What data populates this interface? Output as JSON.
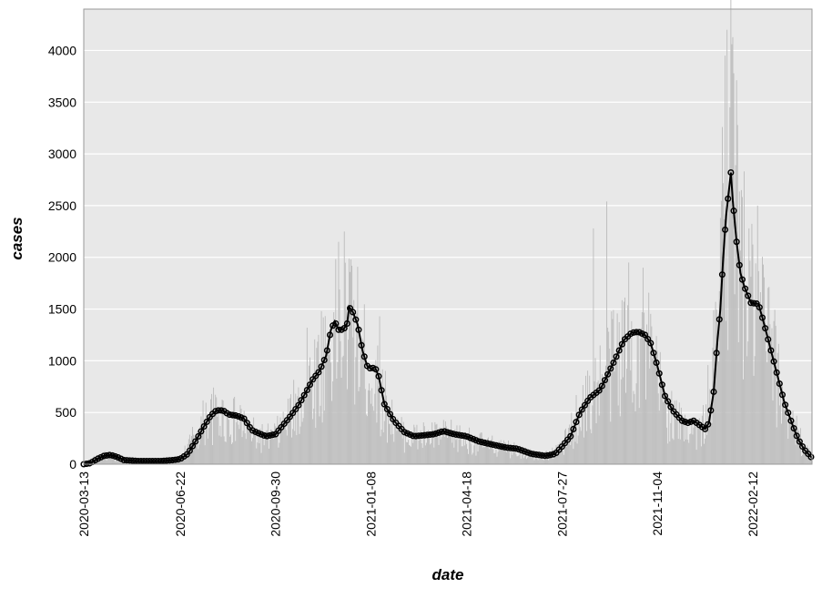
{
  "chart_data": {
    "type": "bar",
    "xlabel": "date",
    "ylabel": "cases",
    "x_axis": {
      "type": "date",
      "range": [
        "2020-03-13",
        "2022-04-15"
      ],
      "ticks": [
        "2020-03-13",
        "2020-06-22",
        "2020-09-30",
        "2021-01-08",
        "2021-04-18",
        "2021-07-27",
        "2021-11-04",
        "2022-02-12"
      ]
    },
    "y_axis": {
      "range": [
        0,
        4400
      ],
      "ticks": [
        0,
        500,
        1000,
        1500,
        2000,
        2500,
        3000,
        3500,
        4000
      ]
    },
    "grid": "horizontal",
    "legend": "none",
    "colors": {
      "background": "#e8e8e8",
      "bars": "#bbbbbb",
      "line": "#000000",
      "grid": "#ffffff"
    },
    "series": [
      {
        "kind": "bar",
        "description": "daily cases",
        "anchors": [
          [
            "2020-03-13",
            0
          ],
          [
            "2020-03-25",
            60
          ],
          [
            "2020-04-05",
            90
          ],
          [
            "2020-04-20",
            30
          ],
          [
            "2020-05-15",
            20
          ],
          [
            "2020-06-12",
            30
          ],
          [
            "2020-06-22",
            60
          ],
          [
            "2020-07-05",
            260
          ],
          [
            "2020-07-20",
            500
          ],
          [
            "2020-08-01",
            530
          ],
          [
            "2020-08-10",
            470
          ],
          [
            "2020-08-25",
            440
          ],
          [
            "2020-09-05",
            320
          ],
          [
            "2020-09-20",
            270
          ],
          [
            "2020-09-30",
            300
          ],
          [
            "2020-10-15",
            500
          ],
          [
            "2020-10-30",
            750
          ],
          [
            "2020-11-15",
            1050
          ],
          [
            "2020-11-28",
            1350
          ],
          [
            "2020-12-08",
            1400
          ],
          [
            "2020-12-20",
            1500
          ],
          [
            "2021-01-01",
            1100
          ],
          [
            "2021-01-08",
            950
          ],
          [
            "2021-01-20",
            700
          ],
          [
            "2021-02-05",
            350
          ],
          [
            "2021-02-20",
            280
          ],
          [
            "2021-03-10",
            300
          ],
          [
            "2021-04-01",
            300
          ],
          [
            "2021-04-18",
            260
          ],
          [
            "2021-05-10",
            200
          ],
          [
            "2021-06-01",
            160
          ],
          [
            "2021-06-20",
            120
          ],
          [
            "2021-07-10",
            90
          ],
          [
            "2021-07-27",
            170
          ],
          [
            "2021-08-10",
            450
          ],
          [
            "2021-08-25",
            700
          ],
          [
            "2021-09-10",
            950
          ],
          [
            "2021-09-25",
            1200
          ],
          [
            "2021-10-10",
            1280
          ],
          [
            "2021-10-25",
            1200
          ],
          [
            "2021-11-04",
            900
          ],
          [
            "2021-11-15",
            550
          ],
          [
            "2021-11-30",
            400
          ],
          [
            "2021-12-10",
            420
          ],
          [
            "2021-12-20",
            330
          ],
          [
            "2022-01-01",
            900
          ],
          [
            "2022-01-08",
            1800
          ],
          [
            "2022-01-15",
            2800
          ],
          [
            "2022-01-20",
            3300
          ],
          [
            "2022-01-25",
            2900
          ],
          [
            "2022-02-01",
            2100
          ],
          [
            "2022-02-12",
            1600
          ],
          [
            "2022-02-25",
            1500
          ],
          [
            "2022-03-10",
            900
          ],
          [
            "2022-03-25",
            450
          ],
          [
            "2022-04-05",
            200
          ],
          [
            "2022-04-15",
            80
          ]
        ],
        "spikes": [
          [
            "2021-08-29",
            2280
          ],
          [
            "2021-09-12",
            2540
          ],
          [
            "2021-10-05",
            1950
          ],
          [
            "2021-10-20",
            1900
          ],
          [
            "2020-11-02",
            1320
          ],
          [
            "2020-12-05",
            2150
          ],
          [
            "2020-12-11",
            2250
          ],
          [
            "2020-12-18",
            1980
          ],
          [
            "2021-01-17",
            1430
          ],
          [
            "2022-01-11",
            3260
          ],
          [
            "2022-01-14",
            3950
          ],
          [
            "2022-01-16",
            4200
          ],
          [
            "2022-01-19",
            3450
          ],
          [
            "2022-01-21",
            4060
          ],
          [
            "2022-01-23",
            3780
          ],
          [
            "2022-01-31",
            2650
          ],
          [
            "2022-02-08",
            2280
          ],
          [
            "2022-02-17",
            2500
          ]
        ]
      },
      {
        "kind": "line",
        "description": "rolling average with circle markers",
        "points": [
          [
            "2020-03-13",
            0
          ],
          [
            "2020-03-20",
            10
          ],
          [
            "2020-03-27",
            50
          ],
          [
            "2020-04-03",
            80
          ],
          [
            "2020-04-10",
            90
          ],
          [
            "2020-04-17",
            70
          ],
          [
            "2020-04-24",
            40
          ],
          [
            "2020-05-10",
            30
          ],
          [
            "2020-06-01",
            30
          ],
          [
            "2020-06-15",
            40
          ],
          [
            "2020-06-22",
            50
          ],
          [
            "2020-06-30",
            100
          ],
          [
            "2020-07-08",
            220
          ],
          [
            "2020-07-16",
            350
          ],
          [
            "2020-07-24",
            470
          ],
          [
            "2020-07-30",
            520
          ],
          [
            "2020-08-06",
            520
          ],
          [
            "2020-08-12",
            480
          ],
          [
            "2020-08-20",
            470
          ],
          [
            "2020-08-28",
            440
          ],
          [
            "2020-09-05",
            330
          ],
          [
            "2020-09-12",
            300
          ],
          [
            "2020-09-20",
            270
          ],
          [
            "2020-09-30",
            290
          ],
          [
            "2020-10-08",
            380
          ],
          [
            "2020-10-16",
            470
          ],
          [
            "2020-10-24",
            570
          ],
          [
            "2020-11-01",
            700
          ],
          [
            "2020-11-08",
            820
          ],
          [
            "2020-11-15",
            900
          ],
          [
            "2020-11-22",
            1050
          ],
          [
            "2020-11-27",
            1300
          ],
          [
            "2020-12-01",
            1380
          ],
          [
            "2020-12-05",
            1300
          ],
          [
            "2020-12-10",
            1300
          ],
          [
            "2020-12-14",
            1360
          ],
          [
            "2020-12-16",
            1520
          ],
          [
            "2020-12-20",
            1470
          ],
          [
            "2020-12-25",
            1350
          ],
          [
            "2020-12-30",
            1100
          ],
          [
            "2021-01-04",
            950
          ],
          [
            "2021-01-08",
            920
          ],
          [
            "2021-01-12",
            940
          ],
          [
            "2021-01-16",
            850
          ],
          [
            "2021-01-22",
            580
          ],
          [
            "2021-02-01",
            420
          ],
          [
            "2021-02-12",
            310
          ],
          [
            "2021-02-22",
            270
          ],
          [
            "2021-03-05",
            280
          ],
          [
            "2021-03-15",
            290
          ],
          [
            "2021-03-25",
            320
          ],
          [
            "2021-04-05",
            290
          ],
          [
            "2021-04-18",
            270
          ],
          [
            "2021-05-01",
            220
          ],
          [
            "2021-05-15",
            190
          ],
          [
            "2021-05-30",
            160
          ],
          [
            "2021-06-10",
            150
          ],
          [
            "2021-06-25",
            100
          ],
          [
            "2021-07-10",
            80
          ],
          [
            "2021-07-20",
            100
          ],
          [
            "2021-07-27",
            170
          ],
          [
            "2021-08-05",
            270
          ],
          [
            "2021-08-15",
            500
          ],
          [
            "2021-08-25",
            640
          ],
          [
            "2021-09-05",
            720
          ],
          [
            "2021-09-12",
            850
          ],
          [
            "2021-09-20",
            1000
          ],
          [
            "2021-09-30",
            1200
          ],
          [
            "2021-10-08",
            1270
          ],
          [
            "2021-10-15",
            1280
          ],
          [
            "2021-10-22",
            1250
          ],
          [
            "2021-10-28",
            1170
          ],
          [
            "2021-11-04",
            950
          ],
          [
            "2021-11-12",
            660
          ],
          [
            "2021-11-20",
            520
          ],
          [
            "2021-11-30",
            420
          ],
          [
            "2021-12-06",
            400
          ],
          [
            "2021-12-12",
            420
          ],
          [
            "2021-12-18",
            380
          ],
          [
            "2021-12-24",
            340
          ],
          [
            "2021-12-28",
            400
          ],
          [
            "2022-01-02",
            700
          ],
          [
            "2022-01-06",
            1200
          ],
          [
            "2022-01-09",
            1500
          ],
          [
            "2022-01-12",
            2000
          ],
          [
            "2022-01-15",
            2400
          ],
          [
            "2022-01-18",
            2650
          ],
          [
            "2022-01-20",
            2820
          ],
          [
            "2022-01-22",
            2550
          ],
          [
            "2022-01-26",
            2150
          ],
          [
            "2022-01-30",
            1850
          ],
          [
            "2022-02-03",
            1720
          ],
          [
            "2022-02-10",
            1560
          ],
          [
            "2022-02-18",
            1550
          ],
          [
            "2022-02-24",
            1350
          ],
          [
            "2022-03-03",
            1100
          ],
          [
            "2022-03-10",
            850
          ],
          [
            "2022-03-17",
            600
          ],
          [
            "2022-03-24",
            420
          ],
          [
            "2022-03-31",
            250
          ],
          [
            "2022-04-07",
            140
          ],
          [
            "2022-04-15",
            60
          ]
        ]
      }
    ]
  }
}
